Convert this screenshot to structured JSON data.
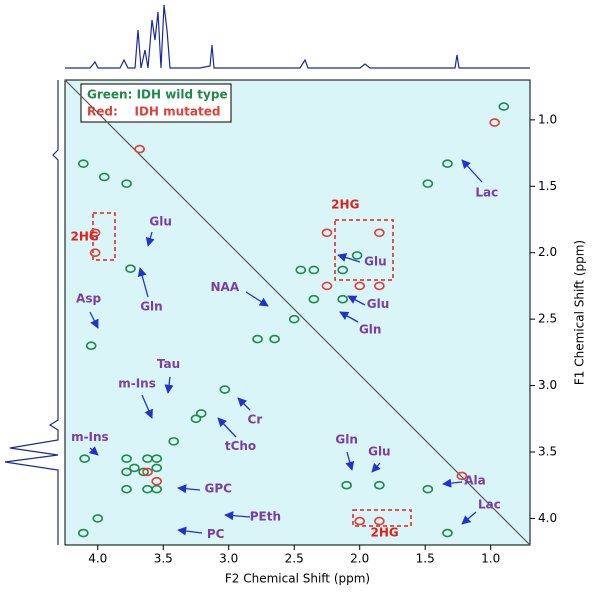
{
  "chart_data": {
    "type": "scatter",
    "xlabel": "F2 Chemical Shift (ppm)",
    "ylabel": "F1 Chemical Shift (ppm)",
    "xlim": [
      4.25,
      0.7
    ],
    "ylim": [
      0.7,
      4.2
    ],
    "xticks": [
      {
        "value": 4,
        "label": "4.0"
      },
      3.5,
      {
        "value": 3,
        "label": "3.0"
      },
      2.5,
      {
        "value": 2,
        "label": "2.0"
      },
      1.5,
      {
        "value": 1,
        "label": "1.0"
      }
    ],
    "yticks": [
      {
        "value": 1,
        "label": "1.0"
      },
      1.5,
      {
        "value": 2,
        "label": "2.0"
      },
      2.5,
      {
        "value": 3,
        "label": "3.0"
      },
      3.5,
      {
        "value": 4,
        "label": "4.0"
      }
    ],
    "background": "#d9f5f7",
    "series": [
      {
        "name": "Green: IDH wild type",
        "color": "#1f8a4c",
        "x": [
          0.9,
          1.33,
          1.48,
          2.02,
          2.13,
          2.35,
          2.5,
          2.65,
          3.03,
          3.21,
          3.25,
          3.42,
          3.55,
          3.65,
          3.78,
          4.0,
          4.11,
          1.33,
          4.11,
          1.48,
          3.78,
          2.35,
          2.13,
          2.45,
          3.75,
          4.05,
          4.1,
          3.62,
          3.55,
          3.72,
          2.1,
          1.85,
          3.95,
          2.78,
          3.78,
          3.62,
          3.55,
          3.78
        ],
        "y": [
          0.9,
          1.33,
          1.48,
          2.02,
          2.13,
          2.35,
          2.5,
          2.65,
          3.03,
          3.21,
          3.25,
          3.42,
          3.55,
          3.65,
          3.78,
          4.0,
          4.11,
          4.11,
          1.33,
          3.78,
          1.48,
          2.13,
          2.35,
          2.13,
          2.12,
          2.7,
          3.55,
          3.55,
          3.62,
          3.62,
          3.75,
          3.75,
          1.43,
          2.65,
          3.65,
          3.78,
          3.78,
          3.55
        ]
      },
      {
        "name": "Red:    IDH mutated",
        "color": "#e0403a",
        "x": [
          4.02,
          4.02,
          1.85,
          2.0,
          2.25,
          2.25,
          1.85,
          2.0,
          1.85,
          1.22,
          3.68,
          3.62,
          3.55,
          0.97
        ],
        "y": [
          1.85,
          2.0,
          4.02,
          4.02,
          1.85,
          2.25,
          2.25,
          2.25,
          1.85,
          3.68,
          1.22,
          3.65,
          3.72,
          1.02
        ]
      }
    ],
    "annotations": [
      {
        "text": "2HG",
        "x": 2.11,
        "y": 1.64,
        "color": "#e0201a"
      },
      {
        "text": "Glu",
        "x": 1.88,
        "y": 2.07,
        "color": "#7a3fa0"
      },
      {
        "text": "Glu",
        "x": 1.86,
        "y": 2.39,
        "color": "#7a3fa0"
      },
      {
        "text": "Gln",
        "x": 1.92,
        "y": 2.58,
        "color": "#7a3fa0"
      },
      {
        "text": "Lac",
        "x": 1.03,
        "y": 1.55,
        "color": "#7a3fa0"
      },
      {
        "text": "Glu",
        "x": 3.52,
        "y": 1.77,
        "color": "#7a3fa0"
      },
      {
        "text": "2HG",
        "x": 4.1,
        "y": 1.88,
        "color": "#e0201a"
      },
      {
        "text": "Gln",
        "x": 3.59,
        "y": 2.41,
        "color": "#7a3fa0"
      },
      {
        "text": "Asp",
        "x": 4.07,
        "y": 2.35,
        "color": "#7a3fa0"
      },
      {
        "text": "NAA",
        "x": 3.03,
        "y": 2.26,
        "color": "#7a3fa0"
      },
      {
        "text": "Tau",
        "x": 3.46,
        "y": 2.84,
        "color": "#7a3fa0"
      },
      {
        "text": "m-Ins",
        "x": 3.7,
        "y": 2.99,
        "color": "#7a3fa0"
      },
      {
        "text": "Cr",
        "x": 2.8,
        "y": 3.26,
        "color": "#7a3fa0"
      },
      {
        "text": "tCho",
        "x": 2.91,
        "y": 3.46,
        "color": "#7a3fa0"
      },
      {
        "text": "m-Ins",
        "x": 4.06,
        "y": 3.39,
        "color": "#7a3fa0"
      },
      {
        "text": "GPC",
        "x": 3.08,
        "y": 3.78,
        "color": "#7a3fa0"
      },
      {
        "text": "PEth",
        "x": 2.72,
        "y": 3.99,
        "color": "#7a3fa0"
      },
      {
        "text": "PC",
        "x": 3.1,
        "y": 4.12,
        "color": "#7a3fa0"
      },
      {
        "text": "Gln",
        "x": 2.1,
        "y": 3.41,
        "color": "#7a3fa0"
      },
      {
        "text": "Glu",
        "x": 1.85,
        "y": 3.5,
        "color": "#7a3fa0"
      },
      {
        "text": "Ala",
        "x": 1.12,
        "y": 3.72,
        "color": "#7a3fa0"
      },
      {
        "text": "Lac",
        "x": 1.01,
        "y": 3.9,
        "color": "#7a3fa0"
      },
      {
        "text": "2HG",
        "x": 1.81,
        "y": 4.11,
        "color": "#e0201a"
      }
    ]
  }
}
